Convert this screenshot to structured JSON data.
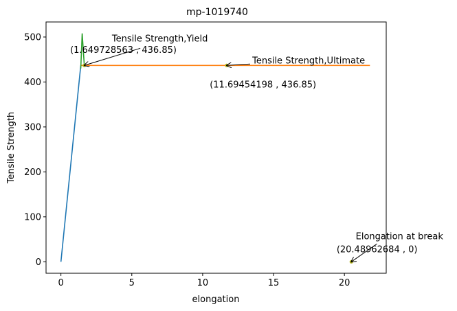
{
  "chart_data": {
    "type": "line",
    "title": "mp-1019740",
    "xlabel": "elongation",
    "ylabel": "Tensile Strength",
    "xlim": [
      -1.05,
      22.95
    ],
    "ylim": [
      -25.5,
      533.5
    ],
    "xticks": [
      0,
      5,
      10,
      15,
      20
    ],
    "yticks": [
      0,
      100,
      200,
      300,
      400,
      500
    ],
    "grid": false,
    "series": [
      {
        "color": "#1f77b4",
        "x": [
          0,
          1.4
        ],
        "y": [
          0,
          436.85
        ]
      },
      {
        "color": "#ff7f0e",
        "x": [
          1.4,
          21.8
        ],
        "y": [
          436.85,
          436.85
        ]
      },
      {
        "color": "#2ca02c",
        "x": [
          1.4,
          1.5,
          1.649728563
        ],
        "y": [
          430,
          508,
          436.85
        ]
      }
    ],
    "points": [
      {
        "x": 1.649728563,
        "y": 436.85,
        "color": "#bcbd22"
      },
      {
        "x": 11.69454198,
        "y": 436.85,
        "color": "#bcbd22"
      },
      {
        "x": 20.48962684,
        "y": 0,
        "color": "#bcbd22"
      }
    ],
    "annotations": [
      {
        "text": "Tensile Strength,Yield",
        "x": 1.649728563,
        "y": 436.85,
        "text_x": 3.6,
        "text_y": 490
      },
      {
        "text": "(1.649728563 , 436.85)",
        "x": 1.649728563,
        "y": 436.85,
        "text_x": 0.65,
        "text_y": 465
      },
      {
        "text": "Tensile Strength,Ultimate",
        "x": 11.69454198,
        "y": 436.85,
        "text_x": 13.5,
        "text_y": 441
      },
      {
        "text": "(11.69454198 , 436.85)",
        "x": 11.69454198,
        "y": 436.85,
        "text_x": 10.5,
        "text_y": 388
      },
      {
        "text": "Elongation at break",
        "x": 20.48962684,
        "y": 0,
        "text_x": 20.8,
        "text_y": 50
      },
      {
        "text": "(20.48962684 , 0)",
        "x": 20.48962684,
        "y": 0,
        "text_x": 19.45,
        "text_y": 21
      }
    ],
    "arrows": [
      {
        "from": [
          5.6,
          475
        ],
        "to": [
          1.649728563,
          436.85
        ]
      },
      {
        "from": [
          13.35,
          440
        ],
        "to": [
          11.69454198,
          436.85
        ]
      },
      {
        "from": [
          22.3,
          40
        ],
        "to": [
          20.48962684,
          0
        ]
      }
    ]
  }
}
